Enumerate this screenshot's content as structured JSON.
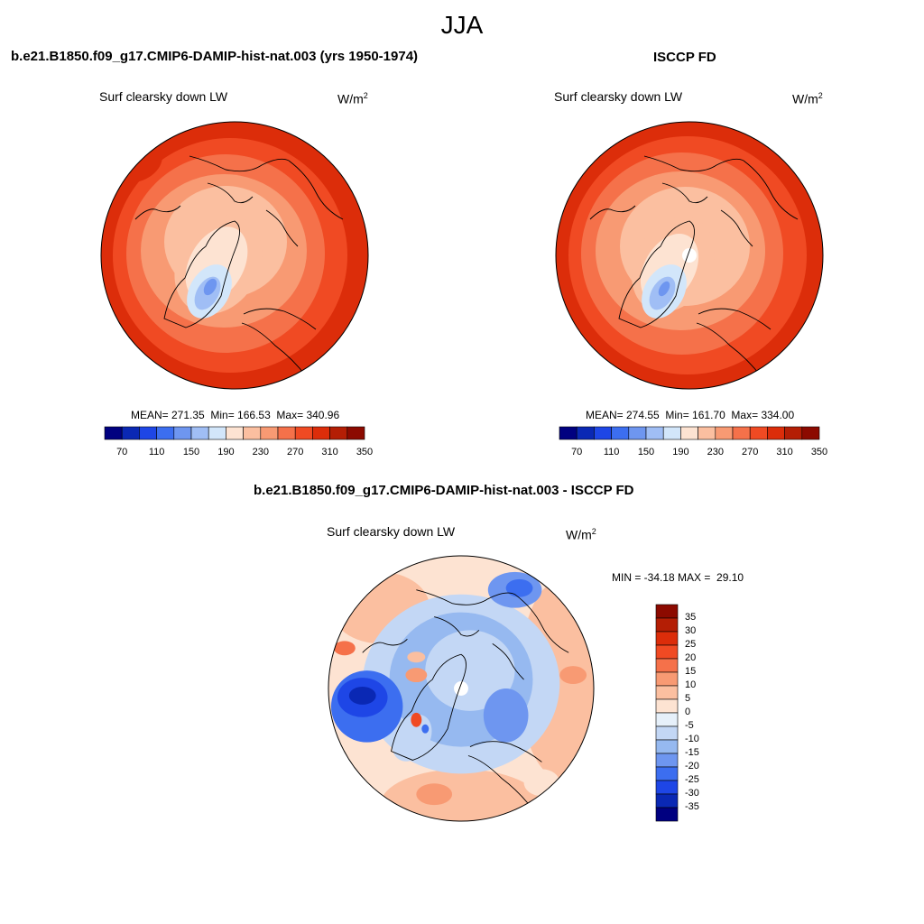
{
  "figure_title": "JJA",
  "panels": [
    {
      "title": "b.e21.B1850.f09_g17.CMIP6-DAMIP-hist-nat.003 (yrs 1950-1974)",
      "variable": "Surf clearsky down LW",
      "units_base": "W/m",
      "units_exp": "2",
      "stats": "MEAN= 271.35  Min= 166.53  Max= 340.96"
    },
    {
      "title": "ISCCP FD",
      "variable": "Surf clearsky down LW",
      "units_base": "W/m",
      "units_exp": "2",
      "stats": "MEAN= 274.55  Min= 161.70  Max= 334.00"
    },
    {
      "title": "b.e21.B1850.f09_g17.CMIP6-DAMIP-hist-nat.003 - ISCCP FD",
      "variable": "Surf clearsky down LW",
      "units_base": "W/m",
      "units_exp": "2",
      "stats": "MIN = -34.18 MAX =  29.10"
    }
  ],
  "colorbar_abs": {
    "ticks": [
      "70",
      "110",
      "150",
      "190",
      "230",
      "270",
      "310",
      "350"
    ],
    "colors": [
      "#000080",
      "#0a28b4",
      "#1e46e6",
      "#3c6ef0",
      "#6e96f0",
      "#a0bef5",
      "#d2e6fa",
      "#fde3d2",
      "#fbbfa0",
      "#f89a73",
      "#f5714a",
      "#f04a23",
      "#dc2d0a",
      "#b41e05",
      "#8c0a00"
    ]
  },
  "colorbar_diff": {
    "ticks": [
      "35",
      "30",
      "25",
      "20",
      "15",
      "10",
      "5",
      "0",
      "-5",
      "-10",
      "-15",
      "-20",
      "-25",
      "-30",
      "-35"
    ],
    "colors": [
      "#8c0a00",
      "#b41e05",
      "#dc2d0a",
      "#f04a23",
      "#f5714a",
      "#f89a73",
      "#fbbfa0",
      "#fde3d2",
      "#e6f0fa",
      "#c3d7f5",
      "#96b9f0",
      "#6e96f0",
      "#3c6ef0",
      "#1e46e6",
      "#0a28b4",
      "#000080"
    ]
  }
}
